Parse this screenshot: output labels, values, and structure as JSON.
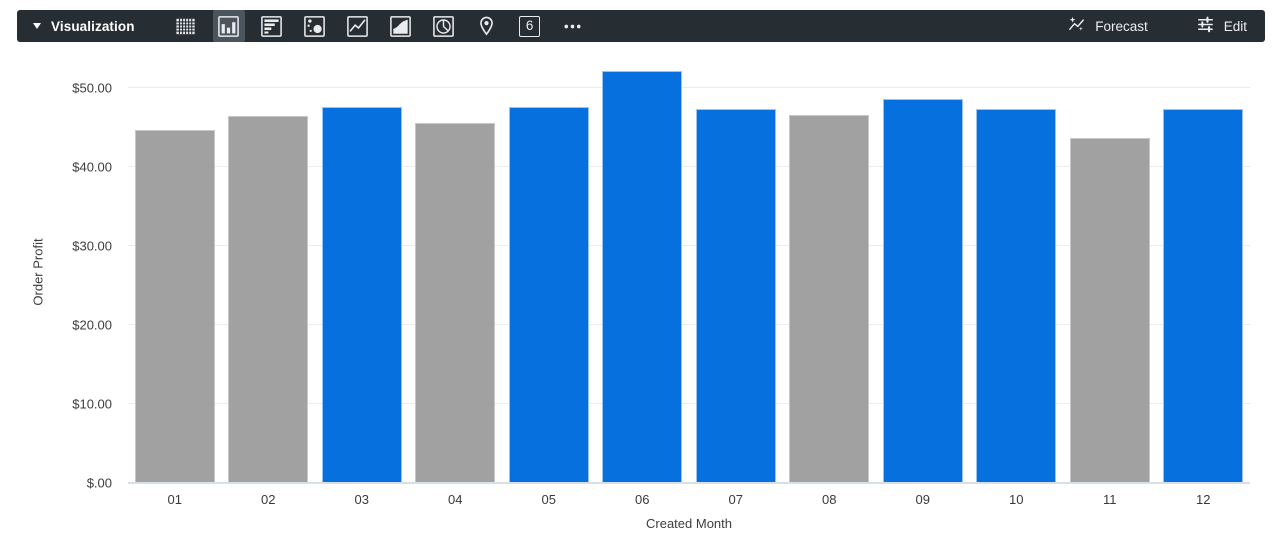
{
  "toolbar": {
    "bg_color": "#262d33",
    "label": "Visualization",
    "viz_types": [
      {
        "name": "table",
        "selected": false
      },
      {
        "name": "column",
        "selected": true
      },
      {
        "name": "bar",
        "selected": false
      },
      {
        "name": "scatter",
        "selected": false
      },
      {
        "name": "line",
        "selected": false
      },
      {
        "name": "area",
        "selected": false
      },
      {
        "name": "pie",
        "selected": false
      },
      {
        "name": "map",
        "selected": false
      },
      {
        "name": "single-value",
        "selected": false,
        "glyph": "6"
      },
      {
        "name": "more",
        "selected": false
      }
    ],
    "forecast_label": "Forecast",
    "edit_label": "Edit"
  },
  "chart_data": {
    "type": "bar",
    "title": "",
    "xlabel": "Created Month",
    "ylabel": "Order Profit",
    "categories": [
      "01",
      "02",
      "03",
      "04",
      "05",
      "06",
      "07",
      "08",
      "09",
      "10",
      "11",
      "12"
    ],
    "values": [
      44.6,
      46.4,
      47.6,
      45.5,
      47.6,
      52.1,
      47.3,
      46.6,
      48.6,
      47.3,
      43.7,
      47.3
    ],
    "bar_colors": [
      "gray",
      "gray",
      "blue",
      "gray",
      "blue",
      "blue",
      "blue",
      "gray",
      "blue",
      "blue",
      "gray",
      "blue"
    ],
    "colors": {
      "blue": "#0570de",
      "gray": "#a1a1a1"
    },
    "border_colors": {
      "blue": "#9cc3f0",
      "gray": "#c7c7c7"
    },
    "ylim": [
      0,
      53.5
    ],
    "yticks": [
      {
        "v": 0,
        "label": "$.00"
      },
      {
        "v": 10,
        "label": "$10.00"
      },
      {
        "v": 20,
        "label": "$20.00"
      },
      {
        "v": 30,
        "label": "$30.00"
      },
      {
        "v": 40,
        "label": "$40.00"
      },
      {
        "v": 50,
        "label": "$50.00"
      }
    ],
    "grid": true,
    "legend": "none"
  }
}
